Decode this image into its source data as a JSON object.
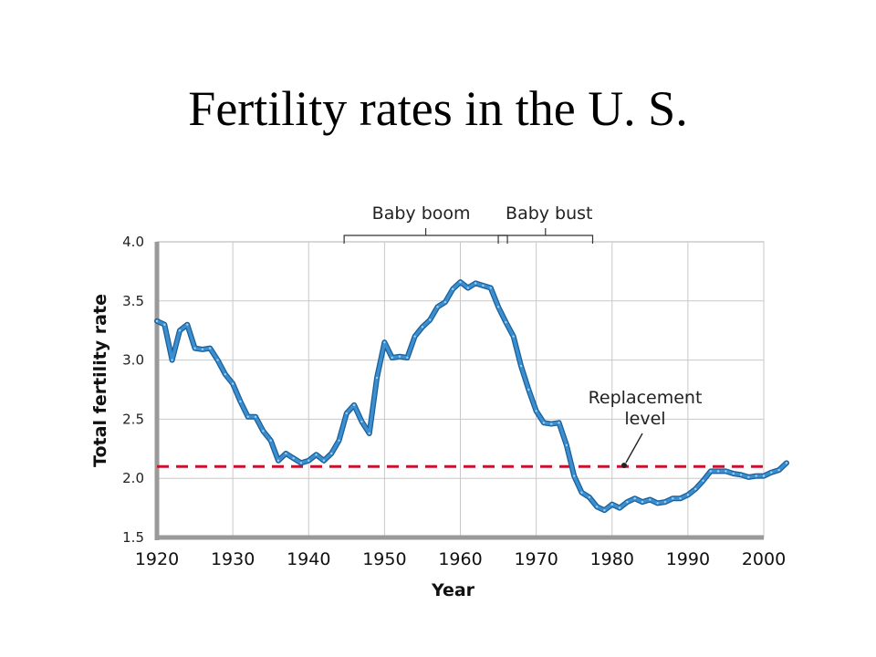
{
  "slide": {
    "title": "Fertility rates in the U. S."
  },
  "chart_data": {
    "type": "line",
    "title": "Fertility rates in the U. S.",
    "xlabel": "Year",
    "ylabel": "Total fertility rate",
    "xlim": [
      1920,
      2000
    ],
    "ylim": [
      1.5,
      4.0
    ],
    "xticks": [
      "1920",
      "1930",
      "1940",
      "1950",
      "1960",
      "1970",
      "1980",
      "1990",
      "2000"
    ],
    "yticks": [
      "1.5",
      "2.0",
      "2.5",
      "3.0",
      "3.5",
      "4.0"
    ],
    "grid": true,
    "colors": {
      "series": "#3b8fd0",
      "series_outline": "#1a5f98",
      "replacement": "#c8102e"
    },
    "series": [
      {
        "values": [
          [
            1920,
            3.33
          ],
          [
            1921,
            3.3
          ],
          [
            1922,
            3.0
          ],
          [
            1923,
            3.25
          ],
          [
            1924,
            3.3
          ],
          [
            1925,
            3.1
          ],
          [
            1926,
            3.09
          ],
          [
            1927,
            3.1
          ],
          [
            1928,
            3.0
          ],
          [
            1929,
            2.88
          ],
          [
            1930,
            2.8
          ],
          [
            1931,
            2.65
          ],
          [
            1932,
            2.52
          ],
          [
            1933,
            2.52
          ],
          [
            1934,
            2.4
          ],
          [
            1935,
            2.32
          ],
          [
            1936,
            2.15
          ],
          [
            1937,
            2.21
          ],
          [
            1938,
            2.17
          ],
          [
            1939,
            2.13
          ],
          [
            1940,
            2.15
          ],
          [
            1941,
            2.2
          ],
          [
            1942,
            2.15
          ],
          [
            1943,
            2.21
          ],
          [
            1944,
            2.32
          ],
          [
            1945,
            2.55
          ],
          [
            1946,
            2.62
          ],
          [
            1947,
            2.48
          ],
          [
            1948,
            2.38
          ],
          [
            1949,
            2.85
          ],
          [
            1950,
            3.15
          ],
          [
            1951,
            3.02
          ],
          [
            1952,
            3.03
          ],
          [
            1953,
            3.02
          ],
          [
            1954,
            3.2
          ],
          [
            1955,
            3.28
          ],
          [
            1956,
            3.34
          ],
          [
            1957,
            3.45
          ],
          [
            1958,
            3.49
          ],
          [
            1959,
            3.6
          ],
          [
            1960,
            3.66
          ],
          [
            1961,
            3.61
          ],
          [
            1962,
            3.65
          ],
          [
            1963,
            3.63
          ],
          [
            1964,
            3.61
          ],
          [
            1965,
            3.45
          ],
          [
            1966,
            3.32
          ],
          [
            1967,
            3.2
          ],
          [
            1968,
            2.95
          ],
          [
            1969,
            2.75
          ],
          [
            1970,
            2.57
          ],
          [
            1971,
            2.47
          ],
          [
            1972,
            2.46
          ],
          [
            1973,
            2.47
          ],
          [
            1974,
            2.28
          ],
          [
            1975,
            2.02
          ],
          [
            1976,
            1.88
          ],
          [
            1977,
            1.84
          ],
          [
            1978,
            1.76
          ],
          [
            1979,
            1.73
          ],
          [
            1980,
            1.78
          ],
          [
            1981,
            1.75
          ],
          [
            1982,
            1.8
          ],
          [
            1983,
            1.83
          ],
          [
            1984,
            1.8
          ],
          [
            1985,
            1.82
          ],
          [
            1986,
            1.79
          ],
          [
            1987,
            1.8
          ],
          [
            1988,
            1.83
          ],
          [
            1989,
            1.83
          ],
          [
            1990,
            1.86
          ],
          [
            1991,
            1.91
          ],
          [
            1992,
            1.98
          ],
          [
            1993,
            2.06
          ],
          [
            1994,
            2.06
          ],
          [
            1995,
            2.06
          ],
          [
            1996,
            2.04
          ],
          [
            1997,
            2.03
          ],
          [
            1998,
            2.01
          ],
          [
            1999,
            2.02
          ],
          [
            2000,
            2.02
          ],
          [
            2001,
            2.05
          ],
          [
            2002,
            2.07
          ],
          [
            2003,
            2.13
          ]
        ]
      }
    ],
    "reference_line": {
      "label": "Replacement\nlevel",
      "value": 2.1
    },
    "annotations": [
      {
        "label": "Baby boom",
        "from": 1946,
        "to": 1965
      },
      {
        "label": "Baby bust",
        "from": 1965,
        "to": 1976
      }
    ]
  }
}
